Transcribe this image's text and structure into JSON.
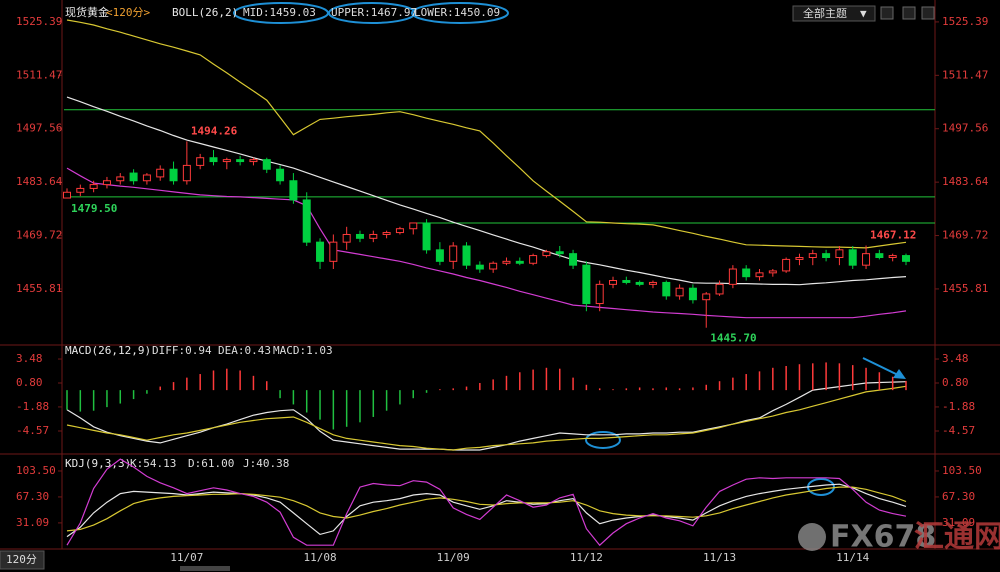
{
  "ui": {
    "theme_button": "全部主题",
    "period_tab": "120分"
  },
  "watermark": {
    "brand": "FX678",
    "name": "汇通网"
  },
  "chart_data": [
    {
      "type": "candlestick",
      "title": "现货黄金",
      "period": "<120分>",
      "indicator": "BOLL(26,2)",
      "categories": [
        null,
        null,
        null,
        null,
        null,
        null,
        null,
        null,
        null,
        "11/07",
        null,
        null,
        null,
        null,
        null,
        null,
        null,
        null,
        null,
        "11/08",
        null,
        null,
        null,
        null,
        null,
        null,
        null,
        null,
        null,
        "11/09",
        null,
        null,
        null,
        null,
        null,
        null,
        null,
        null,
        null,
        "11/12",
        null,
        null,
        null,
        null,
        null,
        null,
        null,
        null,
        null,
        "11/13",
        null,
        null,
        null,
        null,
        null,
        null,
        null,
        null,
        null,
        "11/14",
        null,
        null,
        null,
        null
      ],
      "open": [
        1479.5,
        1481,
        1482,
        1483,
        1484,
        1486,
        1484,
        1485,
        1487,
        1484,
        1488,
        1490,
        1489,
        1489.5,
        1489,
        1489.5,
        1487,
        1484,
        1479,
        1468,
        1463,
        1468,
        1470,
        1469,
        1470,
        1470.5,
        1471.5,
        1473,
        1466,
        1463,
        1467,
        1462,
        1461,
        1462.5,
        1463,
        1462.5,
        1464.5,
        1465.5,
        1465,
        1462,
        1452,
        1457,
        1458,
        1457.5,
        1457,
        1457.5,
        1454,
        1456,
        1453,
        1454.5,
        1457,
        1461,
        1459,
        1460,
        1460.5,
        1463.5,
        1464,
        1465,
        1464,
        1466,
        1462,
        1465,
        1464,
        1464.5
      ],
      "high": [
        1482,
        1483,
        1484,
        1485,
        1486,
        1487,
        1486,
        1488,
        1489,
        1494.26,
        1491,
        1492,
        1490,
        1490.5,
        1490,
        1490,
        1488,
        1486,
        1481,
        1469,
        1470,
        1472,
        1471,
        1471,
        1471,
        1472,
        1473,
        1474,
        1468,
        1468,
        1468,
        1463,
        1463,
        1464,
        1464,
        1465,
        1466,
        1467,
        1466,
        1463,
        1458,
        1459,
        1459,
        1458,
        1458,
        1458,
        1457,
        1457,
        1455,
        1458,
        1462,
        1462,
        1461,
        1461,
        1464,
        1465,
        1466,
        1466,
        1467,
        1467,
        1467.12,
        1466,
        1465,
        1465
      ],
      "low": [
        1479.5,
        1480,
        1481,
        1482,
        1483,
        1483,
        1483,
        1484,
        1483,
        1483,
        1487,
        1488,
        1487,
        1488,
        1488,
        1486,
        1483,
        1478,
        1467,
        1461,
        1461,
        1466,
        1468,
        1468,
        1469,
        1470,
        1470,
        1465,
        1462,
        1461,
        1461,
        1460,
        1460,
        1462,
        1462,
        1462,
        1464,
        1464,
        1461,
        1450,
        1450,
        1456,
        1457,
        1456.5,
        1456,
        1453,
        1453,
        1452,
        1445.7,
        1454,
        1456,
        1458,
        1458,
        1459,
        1460,
        1462,
        1462,
        1463,
        1462,
        1461,
        1461,
        1463.5,
        1463,
        1462
      ],
      "close": [
        1481,
        1482,
        1483,
        1484,
        1485,
        1484,
        1485.5,
        1487,
        1484,
        1488,
        1490,
        1489,
        1489.5,
        1489,
        1489.5,
        1487,
        1484,
        1479,
        1468,
        1463,
        1468,
        1470,
        1469,
        1470,
        1470.5,
        1471.5,
        1473,
        1466,
        1463,
        1467,
        1462,
        1461,
        1462.5,
        1463,
        1462.5,
        1464.5,
        1465.5,
        1465,
        1462,
        1452,
        1457,
        1458,
        1457.5,
        1457,
        1457.5,
        1454,
        1456,
        1453,
        1454.5,
        1457,
        1461,
        1459,
        1460,
        1460.5,
        1463.5,
        1464,
        1465,
        1464,
        1466,
        1462,
        1465,
        1464,
        1464.5,
        1463
      ],
      "up_color": "#ff3a3a",
      "down_color": "#00d040",
      "series": [
        {
          "label": "MID:1459.03",
          "color": "#e6e6e6",
          "values": [
            1505.8,
            1504.6,
            1503.3,
            1502.1,
            1500.8,
            1499.6,
            1498.3,
            1497.1,
            1495.8,
            1494.6,
            1493.7,
            1492.8,
            1491.9,
            1491.0,
            1490.0,
            1489.1,
            1488.2,
            1487.3,
            1486.1,
            1484.9,
            1483.7,
            1482.5,
            1481.3,
            1480.1,
            1478.9,
            1477.7,
            1476.6,
            1475.5,
            1474.4,
            1473.2,
            1472.1,
            1471.0,
            1469.9,
            1468.8,
            1467.7,
            1466.7,
            1465.6,
            1464.5,
            1463.4,
            1462.7,
            1462.1,
            1461.4,
            1460.7,
            1460.1,
            1459.4,
            1458.7,
            1458.1,
            1457.4,
            1457.3,
            1457.3,
            1457.2,
            1457.2,
            1457.1,
            1457.0,
            1457.0,
            1456.9,
            1457.2,
            1457.4,
            1457.7,
            1458.0,
            1458.2,
            1458.5,
            1458.8,
            1459.03
          ]
        },
        {
          "label": "UPPER:1467.97",
          "color": "#d8c832",
          "values": [
            1525.9,
            1525.3,
            1524.6,
            1523.6,
            1522.7,
            1521.7,
            1520.7,
            1519.7,
            1518.8,
            1517.8,
            1516.8,
            1514.4,
            1512.1,
            1509.7,
            1507.4,
            1505.0,
            1500.5,
            1496.0,
            1498.0,
            1500.0,
            1500.3,
            1500.7,
            1501.0,
            1501.3,
            1501.7,
            1502.0,
            1501.2,
            1500.3,
            1499.5,
            1498.7,
            1497.8,
            1497.0,
            1493.8,
            1490.5,
            1487.3,
            1484.0,
            1481.3,
            1478.7,
            1476.0,
            1473.3,
            1473.2,
            1473.0,
            1472.8,
            1472.7,
            1472.5,
            1471.8,
            1471.0,
            1470.3,
            1469.5,
            1468.8,
            1468.0,
            1467.3,
            1467.2,
            1467.1,
            1467.0,
            1466.9,
            1466.8,
            1466.7,
            1466.7,
            1466.6,
            1466.5,
            1467.0,
            1467.5,
            1467.97
          ]
        },
        {
          "label": "LOWER:1450.09",
          "color": "#d23cd2",
          "values": [
            1487.3,
            1485.3,
            1483.4,
            1483.0,
            1482.6,
            1482.3,
            1481.9,
            1481.5,
            1481.1,
            1480.7,
            1480.3,
            1480.1,
            1479.9,
            1479.8,
            1479.6,
            1479.4,
            1479.2,
            1479.0,
            1477.5,
            1471.5,
            1466.0,
            1465.4,
            1464.8,
            1464.2,
            1463.6,
            1463.0,
            1462.2,
            1461.3,
            1460.5,
            1459.7,
            1458.8,
            1458.0,
            1457.1,
            1456.2,
            1455.2,
            1454.3,
            1453.4,
            1452.5,
            1451.6,
            1451.3,
            1451.0,
            1450.7,
            1450.4,
            1450.1,
            1449.8,
            1449.6,
            1449.4,
            1449.2,
            1448.9,
            1448.7,
            1448.5,
            1448.3,
            1448.3,
            1448.3,
            1448.3,
            1448.3,
            1448.3,
            1448.3,
            1448.3,
            1448.3,
            1448.7,
            1449.2,
            1449.6,
            1450.09
          ]
        }
      ],
      "hlines": [
        {
          "value": 1502.5
        },
        {
          "value": 1479.8
        },
        {
          "value": 1473.0,
          "start": 26
        }
      ],
      "hline_color": "#22c43a",
      "annotations": [
        {
          "x": 9,
          "value": 1494.26,
          "at": "high"
        },
        {
          "x": 0,
          "value": 1479.5,
          "label": "1479.50",
          "at": "low"
        },
        {
          "x": 60,
          "value": 1467.12,
          "at": "high"
        },
        {
          "x": 48,
          "value": 1445.7,
          "label": "1445.70",
          "at": "low"
        }
      ],
      "ylim": [
        1442.5,
        1529.8
      ],
      "yticks": [
        1525.39,
        1511.47,
        1497.56,
        1483.64,
        1469.72,
        1455.81
      ]
    },
    {
      "type": "macd",
      "indicator": "MACD(26,12,9)",
      "series": [
        {
          "label": "DIFF:0.94",
          "color": "#e6e6e6",
          "values": [
            -2.2,
            -3.1,
            -4.1,
            -4.7,
            -5.1,
            -5.4,
            -5.7,
            -5.9,
            -5.5,
            -5.1,
            -4.7,
            -4.2,
            -3.8,
            -3.3,
            -2.8,
            -2.5,
            -2.3,
            -2.2,
            -3.2,
            -4.6,
            -5.6,
            -5.8,
            -6.0,
            -6.2,
            -6.4,
            -6.6,
            -6.6,
            -6.6,
            -6.6,
            -6.7,
            -6.7,
            -6.7,
            -6.4,
            -6.1,
            -5.7,
            -5.4,
            -5.1,
            -4.8,
            -4.9,
            -5.0,
            -5.0,
            -5.0,
            -4.9,
            -4.9,
            -4.8,
            -4.8,
            -4.7,
            -4.7,
            -4.4,
            -4.1,
            -3.8,
            -3.4,
            -3.1,
            -2.3,
            -1.6,
            -0.8,
            0.0,
            0.2,
            0.4,
            0.6,
            0.8,
            0.85,
            0.9,
            0.94
          ]
        },
        {
          "label": "DEA:0.43",
          "color": "#d8c832",
          "values": [
            -3.9,
            -4.2,
            -4.5,
            -4.8,
            -5.0,
            -5.3,
            -5.6,
            -5.3,
            -5.0,
            -4.8,
            -4.5,
            -4.2,
            -3.9,
            -3.6,
            -3.4,
            -3.2,
            -3.1,
            -3.0,
            -3.6,
            -4.3,
            -5.0,
            -5.4,
            -5.6,
            -5.8,
            -6.0,
            -6.2,
            -6.3,
            -6.5,
            -6.6,
            -6.7,
            -6.5,
            -6.4,
            -6.2,
            -6.1,
            -6.0,
            -5.9,
            -5.7,
            -5.6,
            -5.5,
            -5.4,
            -5.4,
            -5.3,
            -5.2,
            -5.1,
            -5.0,
            -5.0,
            -4.9,
            -4.8,
            -4.5,
            -4.2,
            -3.8,
            -3.5,
            -3.2,
            -2.9,
            -2.5,
            -2.2,
            -1.8,
            -1.4,
            -1.0,
            -0.6,
            -0.2,
            0.0,
            0.2,
            0.43
          ]
        },
        {
          "label": "MACD:1.03",
          "kind": "bar",
          "color": "#ff3a3a",
          "down_color": "#20c040",
          "values": [
            -2.2,
            -2.4,
            -2.3,
            -1.9,
            -1.5,
            -1.0,
            -0.4,
            0.4,
            0.9,
            1.4,
            1.8,
            2.2,
            2.4,
            2.2,
            1.6,
            1.0,
            -0.9,
            -1.6,
            -2.5,
            -3.3,
            -4.4,
            -4.1,
            -3.6,
            -3.0,
            -2.3,
            -1.6,
            -0.9,
            -0.3,
            0.1,
            0.2,
            0.4,
            0.8,
            1.2,
            1.6,
            2.0,
            2.3,
            2.5,
            2.4,
            1.4,
            0.6,
            0.2,
            0.1,
            0.2,
            0.3,
            0.2,
            0.3,
            0.2,
            0.3,
            0.6,
            1.0,
            1.4,
            1.8,
            2.1,
            2.5,
            2.7,
            2.9,
            3.0,
            3.1,
            3.0,
            2.8,
            2.5,
            2.0,
            1.5,
            1.03
          ]
        }
      ],
      "ylim": [
        -6.92,
        4.49
      ],
      "yticks": [
        3.48,
        {
          "value": 0.8,
          "label": "0.80"
        },
        -1.88,
        -4.57
      ]
    },
    {
      "type": "line",
      "indicator": "KDJ(9,3,3)",
      "series": [
        {
          "label": "K:54.13",
          "color": "#e6e6e6",
          "values": [
            12,
            25,
            45,
            60,
            72,
            75,
            74,
            73,
            72,
            70,
            72,
            74,
            73,
            72,
            70,
            66,
            60,
            45,
            30,
            15,
            20,
            40,
            55,
            60,
            62,
            65,
            70,
            72,
            70,
            60,
            55,
            50,
            55,
            62,
            60,
            57,
            58,
            62,
            65,
            45,
            30,
            35,
            38,
            40,
            42,
            40,
            38,
            35,
            45,
            55,
            62,
            68,
            72,
            75,
            78,
            80,
            82,
            84,
            85,
            80,
            72,
            65,
            60,
            54.13
          ]
        },
        {
          "label": "D:61.00",
          "color": "#d8c832",
          "values": [
            20,
            22,
            28,
            37,
            48,
            58,
            63,
            66,
            68,
            69,
            70,
            71,
            71,
            72,
            71,
            69,
            67,
            62,
            55,
            45,
            40,
            38,
            42,
            47,
            51,
            56,
            60,
            64,
            66,
            64,
            61,
            57,
            56,
            58,
            59,
            59,
            59,
            60,
            62,
            56,
            48,
            44,
            42,
            41,
            41,
            41,
            40,
            39,
            41,
            45,
            51,
            56,
            61,
            66,
            70,
            73,
            76,
            79,
            81,
            81,
            78,
            73,
            68,
            61
          ]
        },
        {
          "label": "J:40.38",
          "color": "#d23cd2",
          "values": [
            0,
            31,
            79,
            106,
            120,
            109,
            96,
            87,
            80,
            72,
            76,
            80,
            77,
            72,
            68,
            60,
            46,
            11,
            0,
            0,
            0,
            44,
            81,
            86,
            84,
            83,
            90,
            88,
            78,
            52,
            43,
            36,
            53,
            70,
            62,
            53,
            56,
            66,
            71,
            23,
            0,
            17,
            30,
            38,
            44,
            38,
            34,
            27,
            53,
            75,
            84,
            92,
            94,
            93,
            94,
            94,
            94,
            94,
            93,
            78,
            60,
            49,
            44,
            40.38
          ]
        }
      ],
      "ylim": [
        -3.9,
        121.6
      ],
      "yticks": [
        {
          "value": 103.5,
          "label": "103.50"
        },
        {
          "value": 67.3,
          "label": "67.30"
        },
        31.09
      ]
    }
  ]
}
